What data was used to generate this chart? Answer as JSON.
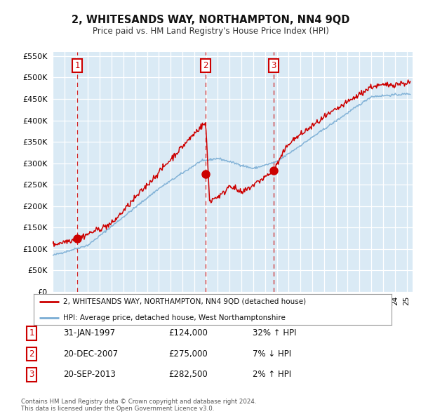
{
  "title": "2, WHITESANDS WAY, NORTHAMPTON, NN4 9QD",
  "subtitle": "Price paid vs. HM Land Registry's House Price Index (HPI)",
  "plot_bg_color": "#daeaf5",
  "grid_color": "#ffffff",
  "ylim": [
    0,
    560000
  ],
  "yticks": [
    0,
    50000,
    100000,
    150000,
    200000,
    250000,
    300000,
    350000,
    400000,
    450000,
    500000,
    550000
  ],
  "xlim_start": 1995.0,
  "xlim_end": 2025.5,
  "sale_dates": [
    1997.08,
    2007.97,
    2013.72
  ],
  "sale_prices": [
    124000,
    275000,
    282500
  ],
  "sale_labels": [
    "1",
    "2",
    "3"
  ],
  "legend_label_red": "2, WHITESANDS WAY, NORTHAMPTON, NN4 9QD (detached house)",
  "legend_label_blue": "HPI: Average price, detached house, West Northamptonshire",
  "table_rows": [
    [
      "1",
      "31-JAN-1997",
      "£124,000",
      "32% ↑ HPI"
    ],
    [
      "2",
      "20-DEC-2007",
      "£275,000",
      "7% ↓ HPI"
    ],
    [
      "3",
      "20-SEP-2013",
      "£282,500",
      "2% ↑ HPI"
    ]
  ],
  "footnote": "Contains HM Land Registry data © Crown copyright and database right 2024.\nThis data is licensed under the Open Government Licence v3.0.",
  "red_color": "#cc0000",
  "blue_color": "#7aadd4",
  "dashed_color": "#cc0000"
}
